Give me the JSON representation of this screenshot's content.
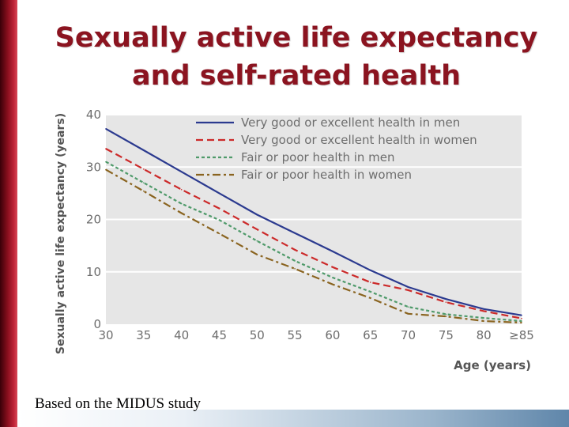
{
  "slide": {
    "title_line1": "Sexually active life expectancy",
    "title_line2": "and self-rated health",
    "caption": "Based on the MIDUS study",
    "accent_color": "#8b1420"
  },
  "chart_data": {
    "type": "line",
    "title": "Sexually active life expectancy and self-rated health",
    "xlabel": "Age (years)",
    "ylabel": "Sexually active life expectancy (years)",
    "x": [
      30,
      35,
      40,
      45,
      50,
      55,
      60,
      65,
      70,
      75,
      80,
      85
    ],
    "x_tick_labels": [
      "30",
      "35",
      "40",
      "45",
      "50",
      "55",
      "60",
      "65",
      "70",
      "75",
      "80",
      "≥85"
    ],
    "y_ticks": [
      "0",
      "10",
      "20",
      "30",
      "40"
    ],
    "ylim": [
      0,
      40
    ],
    "grid": true,
    "legend_position": "top-right",
    "series": [
      {
        "name": "Very good or excellent health in men",
        "style": "solid",
        "color": "#2b3a8f",
        "values": [
          37.3,
          33.2,
          29.1,
          25.0,
          20.9,
          17.4,
          13.9,
          10.3,
          7.1,
          4.8,
          2.9,
          1.7
        ]
      },
      {
        "name": "Very good or excellent health in women",
        "style": "dashed",
        "color": "#cc2a2a",
        "values": [
          33.5,
          29.6,
          25.7,
          22.1,
          18.1,
          14.2,
          10.9,
          8.0,
          6.5,
          4.2,
          2.5,
          1.1
        ]
      },
      {
        "name": "Fair or poor health in men",
        "style": "dotted",
        "color": "#4f9a6a",
        "values": [
          31.0,
          27.0,
          23.0,
          19.9,
          15.9,
          12.1,
          8.9,
          6.2,
          3.3,
          1.9,
          1.2,
          0.6
        ]
      },
      {
        "name": "Fair or poor health in women",
        "style": "dashdot",
        "color": "#8a6420",
        "values": [
          29.5,
          25.4,
          21.2,
          17.3,
          13.3,
          10.6,
          7.6,
          5.0,
          2.0,
          1.5,
          0.6,
          0.3
        ]
      }
    ]
  }
}
